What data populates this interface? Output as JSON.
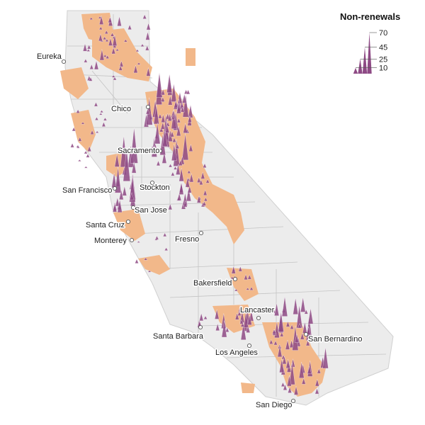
{
  "legend": {
    "title": "Non-renewals",
    "ticks": [
      70,
      45,
      25,
      10
    ]
  },
  "colors": {
    "land": "#ececec",
    "county_border": "#bdbdbd",
    "fire_risk_area": "#f2b88a",
    "spike": "#8e4a85"
  },
  "cities": [
    {
      "name": "Eureka"
    },
    {
      "name": "Chico"
    },
    {
      "name": "Sacramento"
    },
    {
      "name": "San Francisco"
    },
    {
      "name": "Stockton"
    },
    {
      "name": "San Jose"
    },
    {
      "name": "Santa Cruz"
    },
    {
      "name": "Monterey"
    },
    {
      "name": "Fresno"
    },
    {
      "name": "Bakersfield"
    },
    {
      "name": "Lancaster"
    },
    {
      "name": "Santa Barbara"
    },
    {
      "name": "San Bernardino"
    },
    {
      "name": "Los Angeles"
    },
    {
      "name": "San Diego"
    }
  ]
}
